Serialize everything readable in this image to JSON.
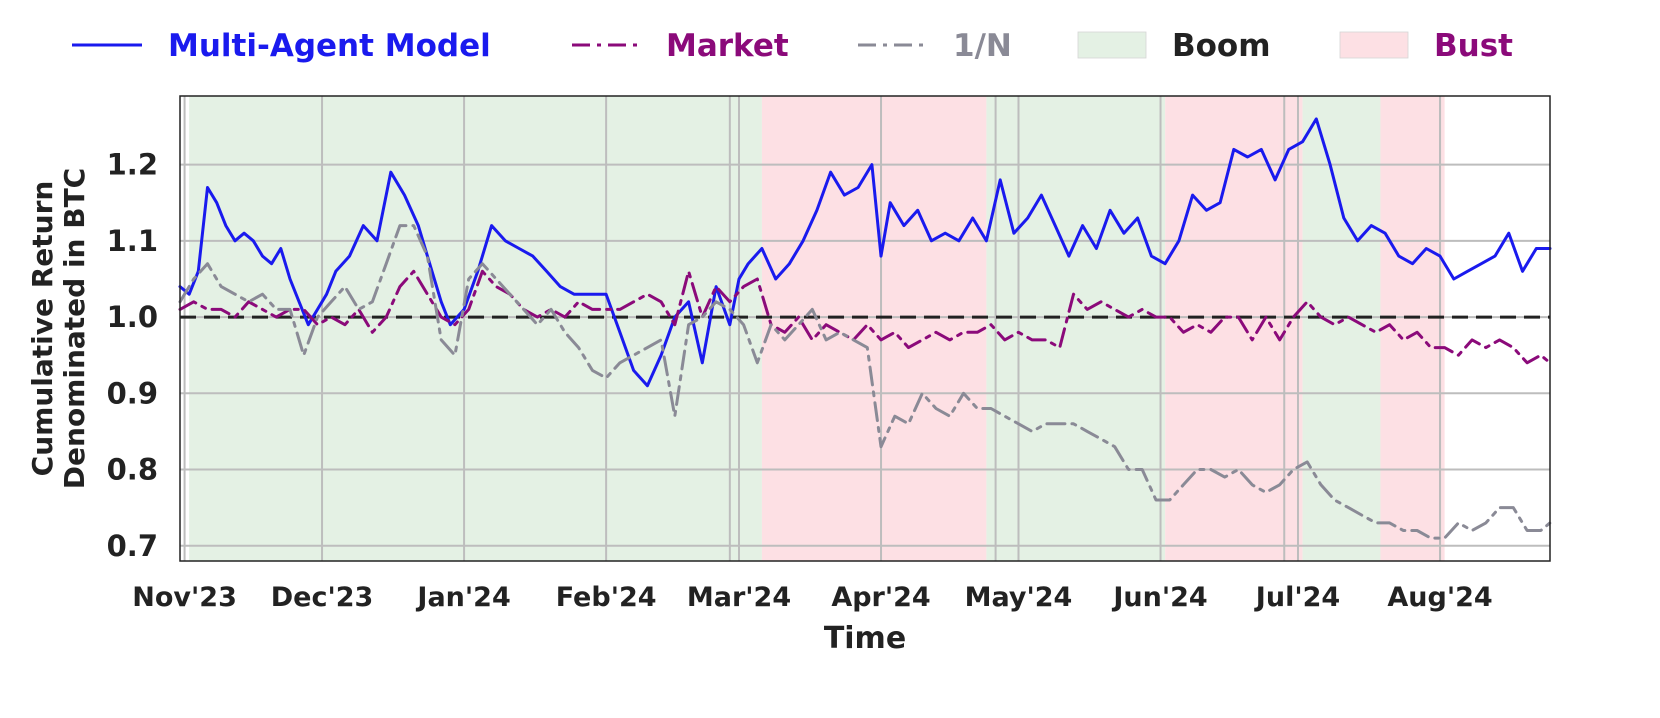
{
  "chart_data": {
    "type": "line",
    "xlabel": "Time",
    "ylabel": "Cumulative Return\nDenominated in BTC",
    "ylim": [
      0.68,
      1.29
    ],
    "xlim": [
      "2023-10-31",
      "2024-08-25"
    ],
    "grid": true,
    "legend_placement": "top, outside plot",
    "baseline": {
      "value": 1.0,
      "style": "dashed",
      "color": "#222222"
    },
    "x_ticks": [
      {
        "date": "2023-11-01",
        "label": "Nov'23"
      },
      {
        "date": "2023-12-01",
        "label": "Dec'23"
      },
      {
        "date": "2024-01-01",
        "label": "Jan'24"
      },
      {
        "date": "2024-02-01",
        "label": "Feb'24"
      },
      {
        "date": "2024-03-01",
        "label": "Mar'24"
      },
      {
        "date": "2024-04-01",
        "label": "Apr'24"
      },
      {
        "date": "2024-05-01",
        "label": "May'24"
      },
      {
        "date": "2024-06-01",
        "label": "Jun'24"
      },
      {
        "date": "2024-07-01",
        "label": "Jul'24"
      },
      {
        "date": "2024-08-01",
        "label": "Aug'24"
      }
    ],
    "y_ticks": [
      {
        "value": 0.7,
        "label": "0.7"
      },
      {
        "value": 0.8,
        "label": "0.8"
      },
      {
        "value": 0.9,
        "label": "0.9"
      },
      {
        "value": 1.0,
        "label": "1.0"
      },
      {
        "value": 1.1,
        "label": "1.1"
      },
      {
        "value": 1.2,
        "label": "1.2"
      }
    ],
    "extra_vgrid_dates": [
      "2024-02-28",
      "2024-04-26",
      "2024-06-28",
      "2024-08-01"
    ],
    "regimes": [
      {
        "kind": "boom",
        "start": "2023-11-02",
        "end": "2024-03-06"
      },
      {
        "kind": "bust",
        "start": "2024-03-06",
        "end": "2024-04-24"
      },
      {
        "kind": "boom",
        "start": "2024-04-24",
        "end": "2024-06-02"
      },
      {
        "kind": "bust",
        "start": "2024-06-02",
        "end": "2024-07-02"
      },
      {
        "kind": "boom",
        "start": "2024-07-02",
        "end": "2024-07-19"
      },
      {
        "kind": "bust",
        "start": "2024-07-19",
        "end": "2024-08-02"
      }
    ],
    "legend": [
      {
        "key": "mam",
        "label": "Multi-Agent Model",
        "kind": "line",
        "style": "solid",
        "color": "#1a1aee",
        "text_color": "#1a1aee"
      },
      {
        "key": "market",
        "label": "Market",
        "kind": "line",
        "style": "dashdot",
        "color": "#8b0a7a",
        "text_color": "#8b0a7a"
      },
      {
        "key": "onen",
        "label": "1/N",
        "kind": "line",
        "style": "dashdot",
        "color": "#8a8a96",
        "text_color": "#8a8a96"
      },
      {
        "key": "boom",
        "label": "Boom",
        "kind": "patch",
        "color": "#e4f1e4",
        "text_color": "#222222"
      },
      {
        "key": "bust",
        "label": "Bust",
        "kind": "patch",
        "color": "#fde0e4",
        "text_color": "#8b0a7a"
      }
    ],
    "series": [
      {
        "name": "Multi-Agent Model",
        "color": "#1a1aee",
        "style": "solid",
        "x": [
          "2023-10-31",
          "2023-11-02",
          "2023-11-04",
          "2023-11-06",
          "2023-11-08",
          "2023-11-10",
          "2023-11-12",
          "2023-11-14",
          "2023-11-16",
          "2023-11-18",
          "2023-11-20",
          "2023-11-22",
          "2023-11-24",
          "2023-11-26",
          "2023-11-28",
          "2023-11-30",
          "2023-12-02",
          "2023-12-04",
          "2023-12-07",
          "2023-12-10",
          "2023-12-13",
          "2023-12-16",
          "2023-12-19",
          "2023-12-22",
          "2023-12-25",
          "2023-12-27",
          "2023-12-29",
          "2024-01-01",
          "2024-01-04",
          "2024-01-07",
          "2024-01-10",
          "2024-01-13",
          "2024-01-16",
          "2024-01-19",
          "2024-01-22",
          "2024-01-25",
          "2024-01-28",
          "2024-02-01",
          "2024-02-04",
          "2024-02-07",
          "2024-02-10",
          "2024-02-13",
          "2024-02-16",
          "2024-02-19",
          "2024-02-22",
          "2024-02-25",
          "2024-02-28",
          "2024-03-01",
          "2024-03-03",
          "2024-03-06",
          "2024-03-09",
          "2024-03-12",
          "2024-03-15",
          "2024-03-18",
          "2024-03-21",
          "2024-03-24",
          "2024-03-27",
          "2024-03-30",
          "2024-04-01",
          "2024-04-03",
          "2024-04-06",
          "2024-04-09",
          "2024-04-12",
          "2024-04-15",
          "2024-04-18",
          "2024-04-21",
          "2024-04-24",
          "2024-04-27",
          "2024-04-30",
          "2024-05-03",
          "2024-05-06",
          "2024-05-09",
          "2024-05-12",
          "2024-05-15",
          "2024-05-18",
          "2024-05-21",
          "2024-05-24",
          "2024-05-27",
          "2024-05-30",
          "2024-06-02",
          "2024-06-05",
          "2024-06-08",
          "2024-06-11",
          "2024-06-14",
          "2024-06-17",
          "2024-06-20",
          "2024-06-23",
          "2024-06-26",
          "2024-06-29",
          "2024-07-02",
          "2024-07-05",
          "2024-07-08",
          "2024-07-11",
          "2024-07-14",
          "2024-07-17",
          "2024-07-20",
          "2024-07-23",
          "2024-07-26",
          "2024-07-29",
          "2024-08-01",
          "2024-08-04",
          "2024-08-07",
          "2024-08-10",
          "2024-08-13",
          "2024-08-16",
          "2024-08-19",
          "2024-08-22",
          "2024-08-25"
        ],
        "y": [
          1.04,
          1.03,
          1.06,
          1.17,
          1.15,
          1.12,
          1.1,
          1.11,
          1.1,
          1.08,
          1.07,
          1.09,
          1.05,
          1.02,
          0.99,
          1.01,
          1.03,
          1.06,
          1.08,
          1.12,
          1.1,
          1.19,
          1.16,
          1.12,
          1.06,
          1.02,
          0.99,
          1.01,
          1.06,
          1.12,
          1.1,
          1.09,
          1.08,
          1.06,
          1.04,
          1.03,
          1.03,
          1.03,
          0.98,
          0.93,
          0.91,
          0.95,
          1.0,
          1.02,
          0.94,
          1.04,
          0.99,
          1.05,
          1.07,
          1.09,
          1.05,
          1.07,
          1.1,
          1.14,
          1.19,
          1.16,
          1.17,
          1.2,
          1.08,
          1.15,
          1.12,
          1.14,
          1.1,
          1.11,
          1.1,
          1.13,
          1.1,
          1.18,
          1.11,
          1.13,
          1.16,
          1.12,
          1.08,
          1.12,
          1.09,
          1.14,
          1.11,
          1.13,
          1.08,
          1.07,
          1.1,
          1.16,
          1.14,
          1.15,
          1.22,
          1.21,
          1.22,
          1.18,
          1.22,
          1.23,
          1.26,
          1.2,
          1.13,
          1.1,
          1.12,
          1.11,
          1.08,
          1.07,
          1.09,
          1.08,
          1.05,
          1.06,
          1.07,
          1.08,
          1.11,
          1.06,
          1.09,
          1.09
        ]
      },
      {
        "name": "Market",
        "color": "#8b0a7a",
        "style": "dashdot",
        "x": [
          "2023-10-31",
          "2023-11-03",
          "2023-11-06",
          "2023-11-09",
          "2023-11-12",
          "2023-11-15",
          "2023-11-18",
          "2023-11-21",
          "2023-11-24",
          "2023-11-27",
          "2023-11-30",
          "2023-12-03",
          "2023-12-06",
          "2023-12-09",
          "2023-12-12",
          "2023-12-15",
          "2023-12-18",
          "2023-12-21",
          "2023-12-24",
          "2023-12-27",
          "2023-12-30",
          "2024-01-02",
          "2024-01-05",
          "2024-01-08",
          "2024-01-11",
          "2024-01-14",
          "2024-01-17",
          "2024-01-20",
          "2024-01-23",
          "2024-01-26",
          "2024-01-29",
          "2024-02-01",
          "2024-02-04",
          "2024-02-07",
          "2024-02-10",
          "2024-02-13",
          "2024-02-16",
          "2024-02-19",
          "2024-02-22",
          "2024-02-25",
          "2024-02-28",
          "2024-03-02",
          "2024-03-05",
          "2024-03-08",
          "2024-03-11",
          "2024-03-14",
          "2024-03-17",
          "2024-03-20",
          "2024-03-23",
          "2024-03-26",
          "2024-03-29",
          "2024-04-01",
          "2024-04-04",
          "2024-04-07",
          "2024-04-10",
          "2024-04-13",
          "2024-04-16",
          "2024-04-19",
          "2024-04-22",
          "2024-04-25",
          "2024-04-28",
          "2024-05-01",
          "2024-05-04",
          "2024-05-07",
          "2024-05-10",
          "2024-05-13",
          "2024-05-16",
          "2024-05-19",
          "2024-05-22",
          "2024-05-25",
          "2024-05-28",
          "2024-05-31",
          "2024-06-03",
          "2024-06-06",
          "2024-06-09",
          "2024-06-12",
          "2024-06-15",
          "2024-06-18",
          "2024-06-21",
          "2024-06-24",
          "2024-06-27",
          "2024-06-30",
          "2024-07-03",
          "2024-07-06",
          "2024-07-09",
          "2024-07-12",
          "2024-07-15",
          "2024-07-18",
          "2024-07-21",
          "2024-07-24",
          "2024-07-27",
          "2024-07-30",
          "2024-08-02",
          "2024-08-05",
          "2024-08-08",
          "2024-08-11",
          "2024-08-14",
          "2024-08-17",
          "2024-08-20",
          "2024-08-23",
          "2024-08-25"
        ],
        "y": [
          1.01,
          1.02,
          1.01,
          1.01,
          1.0,
          1.02,
          1.01,
          1.0,
          1.01,
          1.01,
          0.99,
          1.0,
          0.99,
          1.01,
          0.98,
          1.0,
          1.04,
          1.06,
          1.03,
          1.0,
          0.99,
          1.01,
          1.06,
          1.04,
          1.03,
          1.01,
          1.0,
          1.01,
          1.0,
          1.02,
          1.01,
          1.01,
          1.01,
          1.02,
          1.03,
          1.02,
          0.99,
          1.06,
          1.0,
          1.04,
          1.02,
          1.04,
          1.05,
          0.99,
          0.98,
          1.0,
          0.97,
          0.99,
          0.98,
          0.97,
          0.99,
          0.97,
          0.98,
          0.96,
          0.97,
          0.98,
          0.97,
          0.98,
          0.98,
          0.99,
          0.97,
          0.98,
          0.97,
          0.97,
          0.96,
          1.03,
          1.01,
          1.02,
          1.01,
          1.0,
          1.01,
          1.0,
          1.0,
          0.98,
          0.99,
          0.98,
          1.0,
          1.0,
          0.97,
          1.0,
          0.97,
          1.0,
          1.02,
          1.0,
          0.99,
          1.0,
          0.99,
          0.98,
          0.99,
          0.97,
          0.98,
          0.96,
          0.96,
          0.95,
          0.97,
          0.96,
          0.97,
          0.96,
          0.94,
          0.95,
          0.94
        ]
      },
      {
        "name": "1/N",
        "color": "#8a8a96",
        "style": "dashdot",
        "x": [
          "2023-10-31",
          "2023-11-03",
          "2023-11-06",
          "2023-11-09",
          "2023-11-12",
          "2023-11-15",
          "2023-11-18",
          "2023-11-21",
          "2023-11-24",
          "2023-11-27",
          "2023-11-30",
          "2023-12-03",
          "2023-12-06",
          "2023-12-09",
          "2023-12-12",
          "2023-12-15",
          "2023-12-18",
          "2023-12-21",
          "2023-12-24",
          "2023-12-27",
          "2023-12-30",
          "2024-01-02",
          "2024-01-05",
          "2024-01-08",
          "2024-01-11",
          "2024-01-14",
          "2024-01-17",
          "2024-01-20",
          "2024-01-23",
          "2024-01-26",
          "2024-01-29",
          "2024-02-01",
          "2024-02-04",
          "2024-02-07",
          "2024-02-10",
          "2024-02-13",
          "2024-02-16",
          "2024-02-19",
          "2024-02-22",
          "2024-02-25",
          "2024-02-28",
          "2024-03-02",
          "2024-03-05",
          "2024-03-08",
          "2024-03-11",
          "2024-03-14",
          "2024-03-17",
          "2024-03-20",
          "2024-03-23",
          "2024-03-26",
          "2024-03-29",
          "2024-04-01",
          "2024-04-04",
          "2024-04-07",
          "2024-04-10",
          "2024-04-13",
          "2024-04-16",
          "2024-04-19",
          "2024-04-22",
          "2024-04-25",
          "2024-04-28",
          "2024-05-01",
          "2024-05-04",
          "2024-05-07",
          "2024-05-10",
          "2024-05-13",
          "2024-05-16",
          "2024-05-19",
          "2024-05-22",
          "2024-05-25",
          "2024-05-28",
          "2024-05-31",
          "2024-06-03",
          "2024-06-06",
          "2024-06-09",
          "2024-06-12",
          "2024-06-15",
          "2024-06-18",
          "2024-06-21",
          "2024-06-24",
          "2024-06-27",
          "2024-06-30",
          "2024-07-03",
          "2024-07-06",
          "2024-07-09",
          "2024-07-12",
          "2024-07-15",
          "2024-07-18",
          "2024-07-21",
          "2024-07-24",
          "2024-07-27",
          "2024-07-30",
          "2024-08-02",
          "2024-08-05",
          "2024-08-08",
          "2024-08-11",
          "2024-08-14",
          "2024-08-17",
          "2024-08-20",
          "2024-08-23",
          "2024-08-25"
        ],
        "y": [
          1.02,
          1.05,
          1.07,
          1.04,
          1.03,
          1.02,
          1.03,
          1.01,
          1.01,
          0.95,
          1.0,
          1.02,
          1.04,
          1.01,
          1.02,
          1.07,
          1.12,
          1.12,
          1.08,
          0.97,
          0.95,
          1.05,
          1.07,
          1.05,
          1.03,
          1.01,
          0.99,
          1.01,
          0.98,
          0.96,
          0.93,
          0.92,
          0.94,
          0.95,
          0.96,
          0.97,
          0.87,
          0.99,
          1.0,
          1.02,
          1.01,
          0.99,
          0.94,
          0.99,
          0.97,
          0.99,
          1.01,
          0.97,
          0.98,
          0.97,
          0.96,
          0.83,
          0.87,
          0.86,
          0.9,
          0.88,
          0.87,
          0.9,
          0.88,
          0.88,
          0.87,
          0.86,
          0.85,
          0.86,
          0.86,
          0.86,
          0.85,
          0.84,
          0.83,
          0.8,
          0.8,
          0.76,
          0.76,
          0.78,
          0.8,
          0.8,
          0.79,
          0.8,
          0.78,
          0.77,
          0.78,
          0.8,
          0.81,
          0.78,
          0.76,
          0.75,
          0.74,
          0.73,
          0.73,
          0.72,
          0.72,
          0.71,
          0.71,
          0.73,
          0.72,
          0.73,
          0.75,
          0.75,
          0.72,
          0.72,
          0.73
        ]
      }
    ]
  }
}
